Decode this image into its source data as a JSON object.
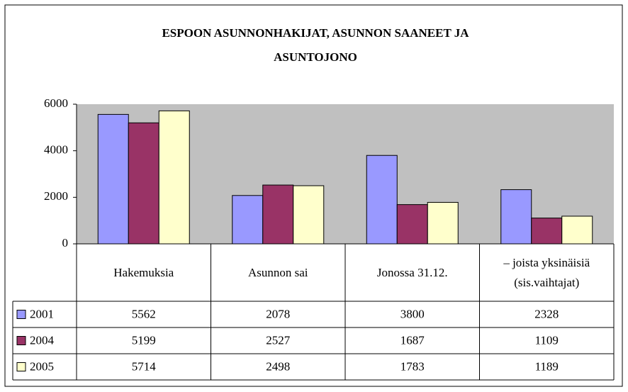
{
  "chart_data": {
    "type": "bar",
    "title": "ESPOON ASUNNONHAKIJAT, ASUNNON SAANEET JA ASUNTOJONO",
    "categories": [
      "Hakemuksia",
      "Asunnon sai",
      "Jonossa 31.12.",
      "– joista yksinäisiä (sis.vaihtajat)"
    ],
    "series": [
      {
        "name": "2001",
        "color": "#9999ff",
        "values": [
          5562,
          2078,
          3800,
          2328
        ]
      },
      {
        "name": "2004",
        "color": "#993366",
        "values": [
          5199,
          2527,
          1687,
          1109
        ]
      },
      {
        "name": "2005",
        "color": "#ffffcc",
        "values": [
          5714,
          2498,
          1783,
          1189
        ]
      }
    ],
    "ylim": [
      0,
      6000
    ],
    "yticks": [
      0,
      2000,
      4000,
      6000
    ],
    "grid": false,
    "plot_background": "#c0c0c0"
  }
}
